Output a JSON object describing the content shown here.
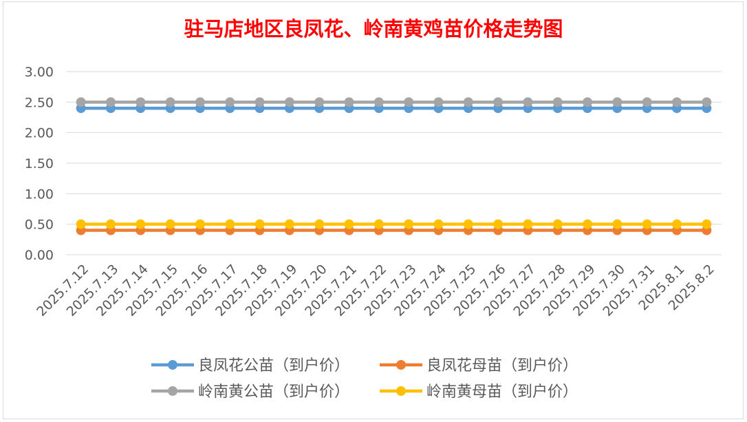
{
  "chart_data": {
    "type": "line",
    "title": "驻马店地区良凤花、岭南黄鸡苗价格走势图",
    "categories": [
      "2025.7.12",
      "2025.7.13",
      "2025.7.14",
      "2025.7.15",
      "2025.7.16",
      "2025.7.17",
      "2025.7.18",
      "2025.7.19",
      "2025.7.20",
      "2025.7.21",
      "2025.7.22",
      "2025.7.23",
      "2025.7.24",
      "2025.7.25",
      "2025.7.26",
      "2025.7.27",
      "2025.7.28",
      "2025.7.29",
      "2025.7.30",
      "2025.7.31",
      "2025.8.1",
      "2025.8.2"
    ],
    "yticks": [
      "0.00",
      "0.50",
      "1.00",
      "1.50",
      "2.00",
      "2.50",
      "3.00"
    ],
    "ylim": [
      0,
      3
    ],
    "grid": true,
    "legend_position": "bottom",
    "series": [
      {
        "name": "良凤花公苗（到户价）",
        "color": "#5b9bd5",
        "values": [
          2.4,
          2.4,
          2.4,
          2.4,
          2.4,
          2.4,
          2.4,
          2.4,
          2.4,
          2.4,
          2.4,
          2.4,
          2.4,
          2.4,
          2.4,
          2.4,
          2.4,
          2.4,
          2.4,
          2.4,
          2.4,
          2.4
        ]
      },
      {
        "name": "良凤花母苗（到户价）",
        "color": "#ed7d31",
        "values": [
          0.4,
          0.4,
          0.4,
          0.4,
          0.4,
          0.4,
          0.4,
          0.4,
          0.4,
          0.4,
          0.4,
          0.4,
          0.4,
          0.4,
          0.4,
          0.4,
          0.4,
          0.4,
          0.4,
          0.4,
          0.4,
          0.4
        ]
      },
      {
        "name": "岭南黄公苗（到户价）",
        "color": "#a5a5a5",
        "values": [
          2.5,
          2.5,
          2.5,
          2.5,
          2.5,
          2.5,
          2.5,
          2.5,
          2.5,
          2.5,
          2.5,
          2.5,
          2.5,
          2.5,
          2.5,
          2.5,
          2.5,
          2.5,
          2.5,
          2.5,
          2.5,
          2.5
        ]
      },
      {
        "name": "岭南黄母苗（到户价）",
        "color": "#ffc000",
        "values": [
          0.5,
          0.5,
          0.5,
          0.5,
          0.5,
          0.5,
          0.5,
          0.5,
          0.5,
          0.5,
          0.5,
          0.5,
          0.5,
          0.5,
          0.5,
          0.5,
          0.5,
          0.5,
          0.5,
          0.5,
          0.5,
          0.5
        ]
      }
    ],
    "title_color": "#ff0000"
  }
}
